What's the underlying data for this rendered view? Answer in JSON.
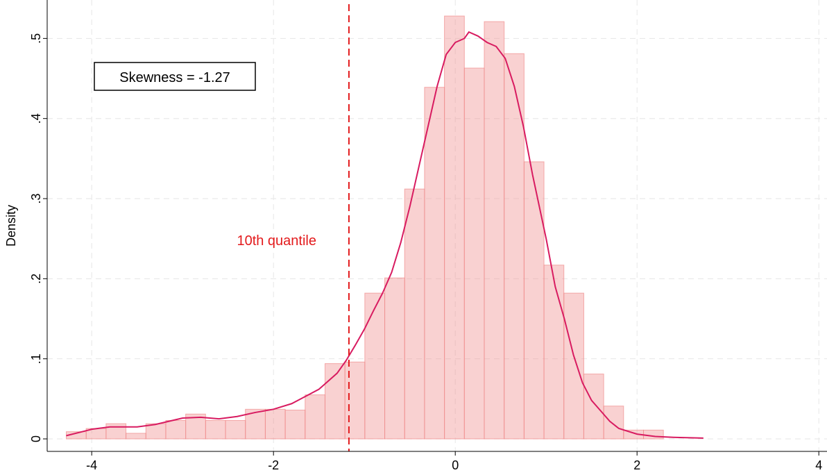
{
  "chart_data": {
    "type": "histogram",
    "y_label": "Density",
    "bins": [
      -4.28,
      -4.061,
      -3.842,
      -3.623,
      -3.404,
      -3.185,
      -2.966,
      -2.747,
      -2.528,
      -2.309,
      -2.09,
      -1.871,
      -1.652,
      -1.433,
      -1.214,
      -0.995,
      -0.776,
      -0.557,
      -0.338,
      -0.119,
      0.1,
      0.319,
      0.538,
      0.757,
      0.976,
      1.195,
      1.414,
      1.633,
      1.852,
      2.071,
      2.29
    ],
    "values": [
      0.009,
      0.013,
      0.019,
      0.007,
      0.019,
      0.023,
      0.031,
      0.023,
      0.023,
      0.037,
      0.037,
      0.036,
      0.055,
      0.094,
      0.096,
      0.182,
      0.201,
      0.312,
      0.439,
      0.528,
      0.463,
      0.521,
      0.481,
      0.346,
      0.217,
      0.182,
      0.081,
      0.041,
      0.011,
      0.011
    ],
    "color": "#f08c8c",
    "line": {
      "color": "#d81b60",
      "x": [
        -4.28,
        -4.0,
        -3.8,
        -3.5,
        -3.3,
        -3.0,
        -2.8,
        -2.6,
        -2.4,
        -2.2,
        -2.0,
        -1.8,
        -1.7,
        -1.5,
        -1.4,
        -1.3,
        -1.2,
        -1.1,
        -1.0,
        -0.9,
        -0.8,
        -0.7,
        -0.6,
        -0.5,
        -0.4,
        -0.3,
        -0.2,
        -0.1,
        0.0,
        0.1,
        0.15,
        0.25,
        0.35,
        0.45,
        0.55,
        0.65,
        0.75,
        0.85,
        1.0,
        1.1,
        1.2,
        1.3,
        1.4,
        1.5,
        1.6,
        1.7,
        1.8,
        2.0,
        2.2,
        2.4,
        2.73
      ],
      "values": [
        0.004,
        0.012,
        0.015,
        0.015,
        0.018,
        0.026,
        0.027,
        0.025,
        0.028,
        0.033,
        0.037,
        0.044,
        0.05,
        0.062,
        0.072,
        0.082,
        0.098,
        0.117,
        0.137,
        0.16,
        0.182,
        0.208,
        0.245,
        0.29,
        0.34,
        0.39,
        0.44,
        0.48,
        0.495,
        0.5,
        0.508,
        0.503,
        0.495,
        0.49,
        0.475,
        0.44,
        0.39,
        0.33,
        0.25,
        0.19,
        0.15,
        0.105,
        0.07,
        0.048,
        0.035,
        0.022,
        0.013,
        0.006,
        0.003,
        0.002,
        0.001
      ]
    },
    "vline": {
      "x": -1.17,
      "color": "#e31a1c",
      "label": "10th quantile"
    },
    "annotation": "Skewness = -1.27",
    "xlim": [
      -4.49,
      4.09
    ],
    "ylim": [
      -0.0156,
      0.548
    ],
    "xticks": [
      -4,
      -2,
      0,
      2,
      4
    ],
    "yticks": [
      0,
      {
        "value": 0.1,
        "label": ".1"
      },
      {
        "value": 0.2,
        "label": ".2"
      },
      {
        "value": 0.3,
        "label": ".3"
      },
      {
        "value": 0.4,
        "label": ".4"
      },
      {
        "value": 0.5,
        "label": ".5"
      }
    ],
    "grid": true
  }
}
